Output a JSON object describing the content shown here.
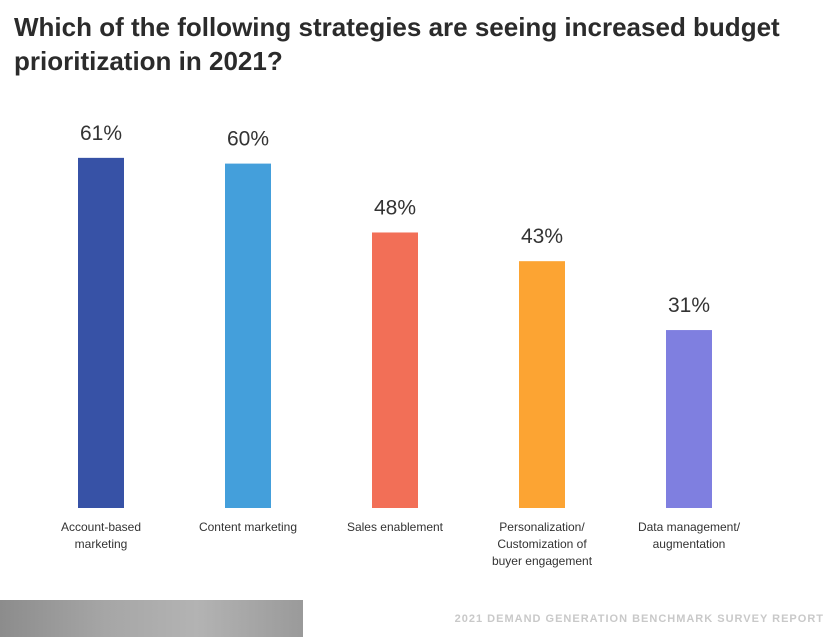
{
  "title": "Which of the following strategies are seeing increased budget prioritization in 2021?",
  "footer": "2021 DEMAND GENERATION BENCHMARK SURVEY REPORT",
  "chart_data": {
    "type": "bar",
    "title": "Which of the following strategies are seeing increased budget prioritization in 2021?",
    "categories": [
      [
        "Account-based",
        "marketing"
      ],
      [
        "Content marketing"
      ],
      [
        "Sales enablement"
      ],
      [
        "Personalization/",
        "Customization of",
        "buyer engagement"
      ],
      [
        "Data management/",
        "augmentation"
      ]
    ],
    "values": [
      61,
      60,
      48,
      43,
      31
    ],
    "value_labels": [
      "61%",
      "60%",
      "48%",
      "43%",
      "31%"
    ],
    "colors": [
      "#3752a6",
      "#449fdb",
      "#f26f57",
      "#fca433",
      "#7f7fe0"
    ],
    "unit": "%",
    "grid": false,
    "legend": "none"
  }
}
